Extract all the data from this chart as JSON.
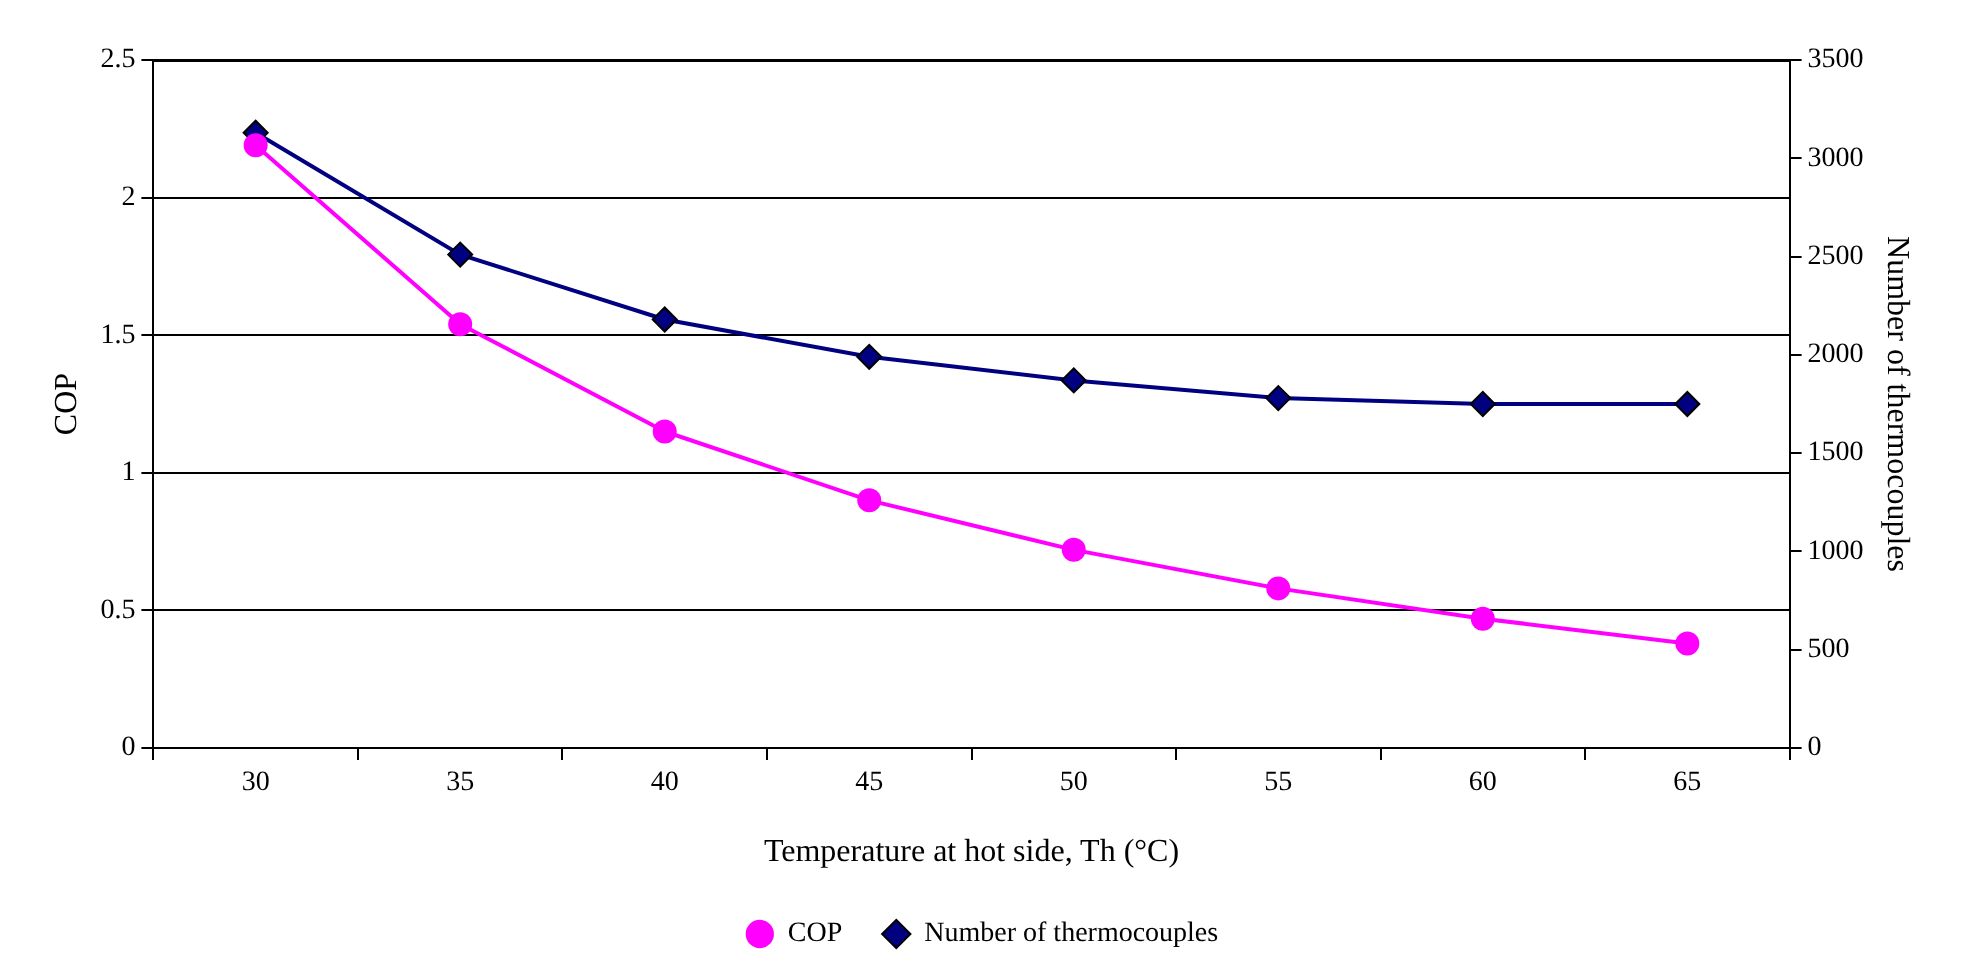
{
  "chart_data": {
    "type": "line",
    "xlabel": "Temperature at hot side, Th (°C)",
    "ylabel": "COP",
    "y2label": "Number of thermocouples",
    "categories": [
      "30",
      "35",
      "40",
      "45",
      "50",
      "55",
      "60",
      "65"
    ],
    "series": [
      {
        "name": "COP",
        "color": "#ff00ff",
        "marker": "circle",
        "values": [
          2.19,
          1.54,
          1.15,
          0.9,
          0.72,
          0.58,
          0.47,
          0.38
        ]
      },
      {
        "name": "Number of thermocouples",
        "color": "#000080",
        "marker": "diamond",
        "axis": "y2",
        "values": [
          3130,
          2510,
          2180,
          1990,
          1870,
          1780,
          1750,
          1750
        ]
      }
    ],
    "ylim": [
      0,
      2.5
    ],
    "yticks": [
      0,
      0.5,
      1,
      1.5,
      2,
      2.5
    ],
    "y2lim": [
      0,
      3500
    ],
    "y2ticks": [
      0,
      500,
      1000,
      1500,
      2000,
      2500,
      3000,
      3500
    ],
    "grid": "y",
    "legend": "bottom",
    "line_style": "solid"
  }
}
